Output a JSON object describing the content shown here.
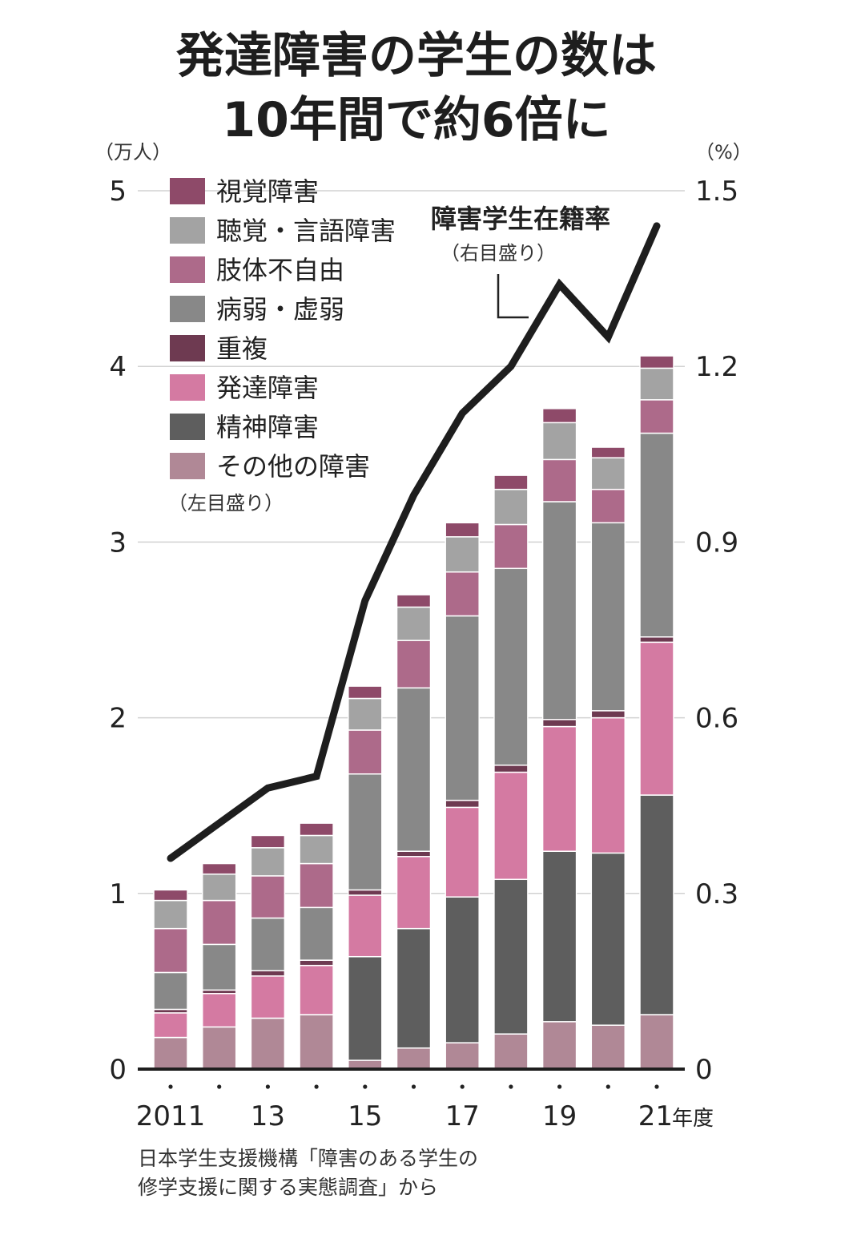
{
  "chart_data": {
    "type": "bar",
    "title_lines": [
      "発達障害の学生の数は",
      "10年間で約6倍に"
    ],
    "left_axis": {
      "unit": "（万人）",
      "ylim": [
        0,
        5
      ],
      "ticks": [
        "0",
        "1",
        "2",
        "3",
        "4",
        "5"
      ]
    },
    "right_axis": {
      "unit": "（%）",
      "ylim": [
        0,
        1.5
      ],
      "ticks": [
        "0",
        "0.3",
        "0.6",
        "0.9",
        "1.2",
        "1.5"
      ]
    },
    "x_years": [
      2011,
      2012,
      2013,
      2014,
      2015,
      2016,
      2017,
      2018,
      2019,
      2020,
      2021
    ],
    "x_tick_labels": [
      {
        "index": 0,
        "label": "2011"
      },
      {
        "index": 2,
        "label": "13"
      },
      {
        "index": 4,
        "label": "15"
      },
      {
        "index": 6,
        "label": "17"
      },
      {
        "index": 8,
        "label": "19"
      },
      {
        "index": 10,
        "label": "21"
      }
    ],
    "x_unit": "年度",
    "stacked": true,
    "series": [
      {
        "name": "その他の障害",
        "color": "#b08896",
        "values": [
          0.18,
          0.24,
          0.29,
          0.31,
          0.05,
          0.12,
          0.15,
          0.2,
          0.27,
          0.25,
          0.31
        ]
      },
      {
        "name": "精神障害",
        "color": "#5e5e5e",
        "values": [
          0.0,
          0.0,
          0.0,
          0.0,
          0.59,
          0.68,
          0.83,
          0.88,
          0.97,
          0.98,
          1.25
        ]
      },
      {
        "name": "発達障害",
        "color": "#d47aa2",
        "values": [
          0.14,
          0.19,
          0.24,
          0.28,
          0.35,
          0.41,
          0.51,
          0.61,
          0.71,
          0.77,
          0.87
        ]
      },
      {
        "name": "重複",
        "color": "#6e3a51",
        "values": [
          0.02,
          0.02,
          0.03,
          0.03,
          0.03,
          0.03,
          0.04,
          0.04,
          0.04,
          0.04,
          0.03
        ]
      },
      {
        "name": "病弱・虚弱",
        "color": "#888888",
        "values": [
          0.21,
          0.26,
          0.3,
          0.3,
          0.66,
          0.93,
          1.05,
          1.12,
          1.24,
          1.07,
          1.16
        ]
      },
      {
        "name": "肢体不自由",
        "color": "#ad6a8a",
        "values": [
          0.25,
          0.25,
          0.24,
          0.25,
          0.25,
          0.27,
          0.25,
          0.25,
          0.24,
          0.19,
          0.19
        ]
      },
      {
        "name": "聴覚・言語障害",
        "color": "#a3a3a3",
        "values": [
          0.16,
          0.15,
          0.16,
          0.16,
          0.18,
          0.19,
          0.2,
          0.2,
          0.21,
          0.18,
          0.18
        ]
      },
      {
        "name": "視覚障害",
        "color": "#8e4a69",
        "values": [
          0.06,
          0.06,
          0.07,
          0.07,
          0.07,
          0.07,
          0.08,
          0.08,
          0.08,
          0.06,
          0.07
        ]
      }
    ],
    "line": {
      "name": "障害学生在籍率",
      "note": "（右目盛り）",
      "axis": "right",
      "color": "#1e1e1e",
      "values": [
        0.36,
        0.42,
        0.48,
        0.5,
        0.8,
        0.98,
        1.12,
        1.2,
        1.34,
        1.25,
        1.44
      ]
    },
    "legend": {
      "placement": "top-left",
      "order": [
        "視覚障害",
        "聴覚・言語障害",
        "肢体不自由",
        "病弱・虚弱",
        "重複",
        "発達障害",
        "精神障害",
        "その他の障害"
      ],
      "note": "（左目盛り）"
    },
    "grid": true
  },
  "source_lines": [
    "日本学生支援機構「障害のある学生の",
    "修学支援に関する実態調査」から"
  ]
}
